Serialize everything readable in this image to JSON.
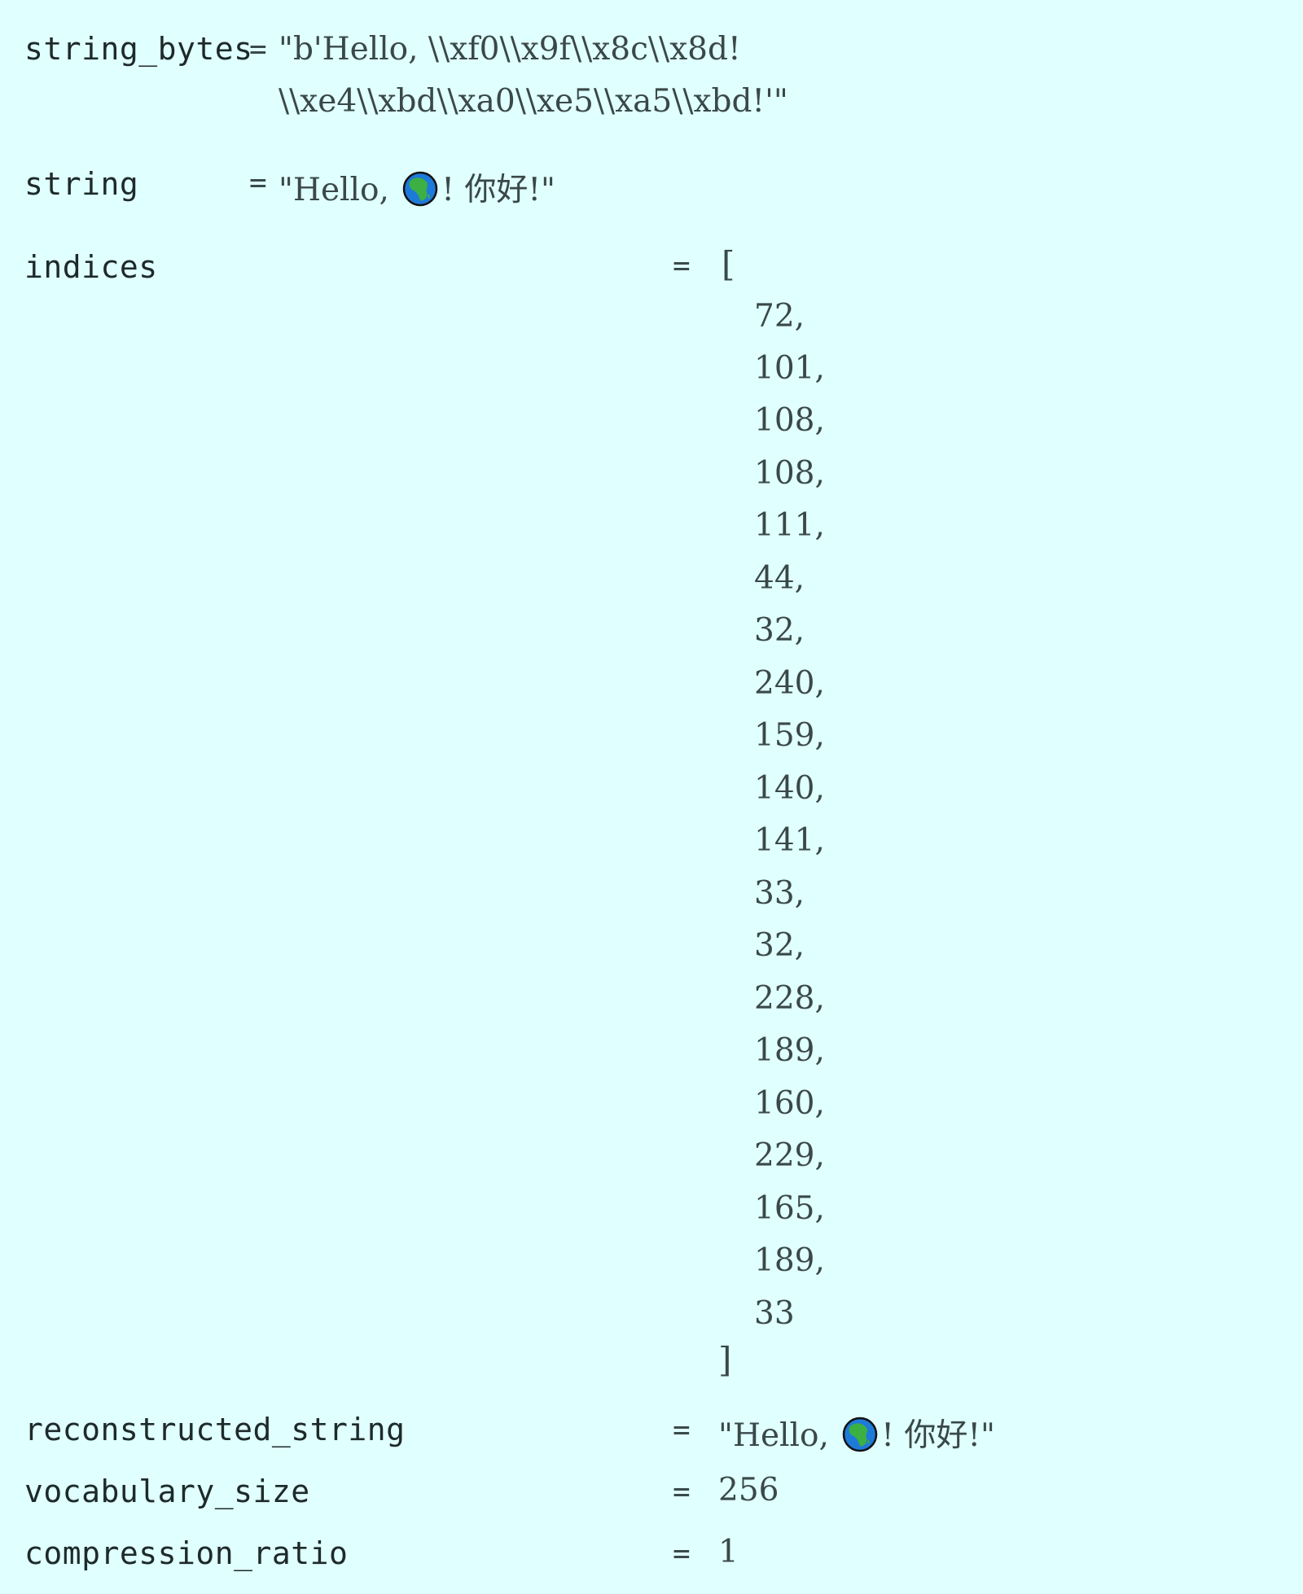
{
  "string_bytes": {
    "label": "string_bytes",
    "eq": "=",
    "line1": "\"b'Hello, \\\\xf0\\\\x9f\\\\x8c\\\\x8d!",
    "line2": "\\\\xe4\\\\xbd\\\\xa0\\\\xe5\\\\xa5\\\\xbd!'\""
  },
  "string": {
    "label": "string",
    "eq": "=",
    "pre": "\"Hello, ",
    "icon": "globe-africa-icon",
    "post": "! 你好!\""
  },
  "indices": {
    "label": "indices",
    "eq": "=",
    "open": "[",
    "close": "]",
    "items": [
      "72,",
      "101,",
      "108,",
      "108,",
      "111,",
      "44,",
      "32,",
      "240,",
      "159,",
      "140,",
      "141,",
      "33,",
      "32,",
      "228,",
      "189,",
      "160,",
      "229,",
      "165,",
      "189,",
      "33"
    ]
  },
  "reconstructed_string": {
    "label": "reconstructed_string",
    "eq": "=",
    "pre": "\"Hello, ",
    "icon": "globe-africa-icon",
    "post": "! 你好!\""
  },
  "vocabulary_size": {
    "label": "vocabulary_size",
    "eq": "=",
    "value": "256"
  },
  "compression_ratio": {
    "label": "compression_ratio",
    "eq": "=",
    "value": "1"
  }
}
